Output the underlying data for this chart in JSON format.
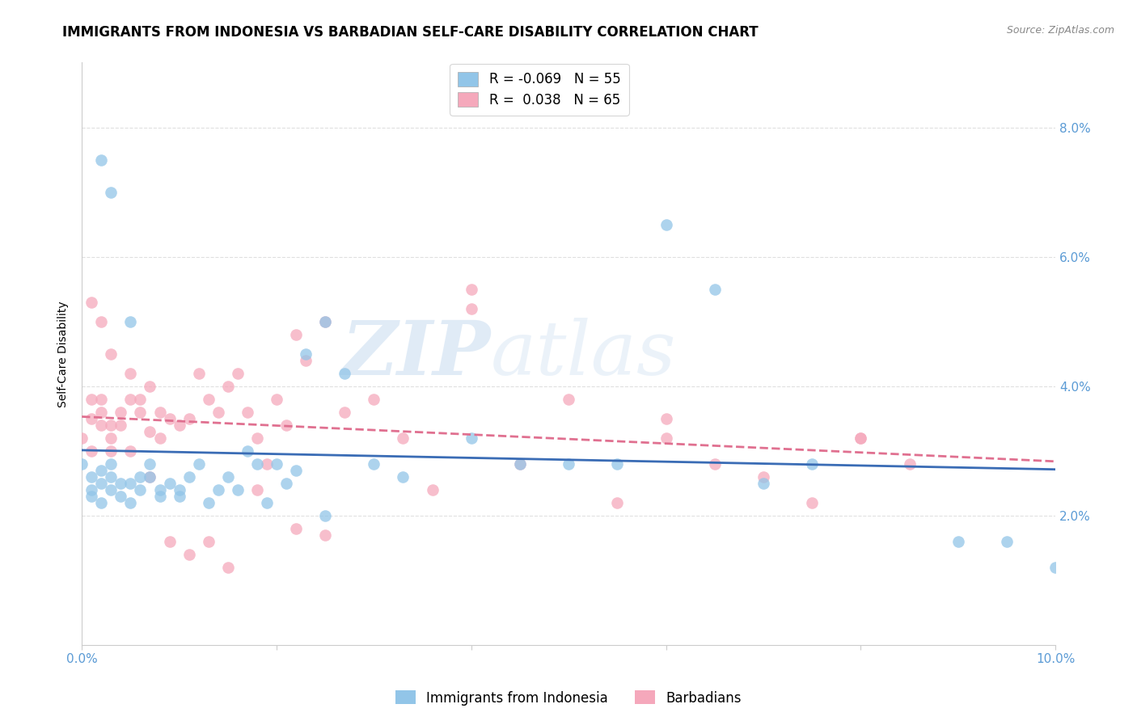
{
  "title": "IMMIGRANTS FROM INDONESIA VS BARBADIAN SELF-CARE DISABILITY CORRELATION CHART",
  "source": "Source: ZipAtlas.com",
  "ylabel": "Self-Care Disability",
  "xmin": 0.0,
  "xmax": 0.1,
  "ymin": 0.0,
  "ymax": 0.09,
  "yticks": [
    0.02,
    0.04,
    0.06,
    0.08
  ],
  "ytick_labels": [
    "2.0%",
    "4.0%",
    "6.0%",
    "8.0%"
  ],
  "legend_blue_r": "-0.069",
  "legend_blue_n": "55",
  "legend_pink_r": "0.038",
  "legend_pink_n": "65",
  "blue_color": "#92C5E8",
  "pink_color": "#F5A8BB",
  "trendline_blue_color": "#3A6CB5",
  "trendline_pink_color": "#E07090",
  "blue_label": "Immigrants from Indonesia",
  "pink_label": "Barbadians",
  "blue_x": [
    0.0,
    0.001,
    0.001,
    0.001,
    0.002,
    0.002,
    0.002,
    0.003,
    0.003,
    0.003,
    0.004,
    0.004,
    0.005,
    0.005,
    0.006,
    0.006,
    0.007,
    0.007,
    0.008,
    0.008,
    0.009,
    0.01,
    0.01,
    0.011,
    0.012,
    0.013,
    0.014,
    0.015,
    0.016,
    0.017,
    0.018,
    0.019,
    0.02,
    0.021,
    0.022,
    0.023,
    0.025,
    0.027,
    0.03,
    0.033,
    0.04,
    0.045,
    0.05,
    0.055,
    0.06,
    0.065,
    0.07,
    0.075,
    0.09,
    0.095,
    0.1,
    0.002,
    0.003,
    0.005,
    0.025
  ],
  "blue_y": [
    0.028,
    0.026,
    0.024,
    0.023,
    0.027,
    0.025,
    0.022,
    0.028,
    0.026,
    0.024,
    0.025,
    0.023,
    0.025,
    0.022,
    0.026,
    0.024,
    0.028,
    0.026,
    0.024,
    0.023,
    0.025,
    0.024,
    0.023,
    0.026,
    0.028,
    0.022,
    0.024,
    0.026,
    0.024,
    0.03,
    0.028,
    0.022,
    0.028,
    0.025,
    0.027,
    0.045,
    0.05,
    0.042,
    0.028,
    0.026,
    0.032,
    0.028,
    0.028,
    0.028,
    0.065,
    0.055,
    0.025,
    0.028,
    0.016,
    0.016,
    0.012,
    0.075,
    0.07,
    0.05,
    0.02
  ],
  "pink_x": [
    0.0,
    0.001,
    0.001,
    0.001,
    0.002,
    0.002,
    0.002,
    0.003,
    0.003,
    0.003,
    0.004,
    0.004,
    0.005,
    0.005,
    0.006,
    0.006,
    0.007,
    0.007,
    0.008,
    0.008,
    0.009,
    0.01,
    0.011,
    0.012,
    0.013,
    0.014,
    0.015,
    0.016,
    0.017,
    0.018,
    0.019,
    0.02,
    0.021,
    0.022,
    0.023,
    0.025,
    0.027,
    0.03,
    0.033,
    0.036,
    0.04,
    0.045,
    0.05,
    0.055,
    0.06,
    0.065,
    0.07,
    0.075,
    0.08,
    0.085,
    0.001,
    0.002,
    0.003,
    0.005,
    0.007,
    0.009,
    0.011,
    0.013,
    0.015,
    0.018,
    0.022,
    0.025,
    0.04,
    0.06,
    0.08
  ],
  "pink_y": [
    0.032,
    0.035,
    0.038,
    0.03,
    0.034,
    0.038,
    0.036,
    0.03,
    0.034,
    0.032,
    0.036,
    0.034,
    0.038,
    0.03,
    0.036,
    0.038,
    0.033,
    0.04,
    0.036,
    0.032,
    0.035,
    0.034,
    0.035,
    0.042,
    0.038,
    0.036,
    0.04,
    0.042,
    0.036,
    0.032,
    0.028,
    0.038,
    0.034,
    0.048,
    0.044,
    0.05,
    0.036,
    0.038,
    0.032,
    0.024,
    0.052,
    0.028,
    0.038,
    0.022,
    0.032,
    0.028,
    0.026,
    0.022,
    0.032,
    0.028,
    0.053,
    0.05,
    0.045,
    0.042,
    0.026,
    0.016,
    0.014,
    0.016,
    0.012,
    0.024,
    0.018,
    0.017,
    0.055,
    0.035,
    0.032
  ],
  "watermark_zip": "ZIP",
  "watermark_atlas": "atlas",
  "background_color": "#FFFFFF",
  "grid_color": "#E0E0E0",
  "axis_color": "#5B9BD5",
  "title_fontsize": 12,
  "axis_label_fontsize": 10,
  "tick_fontsize": 11
}
